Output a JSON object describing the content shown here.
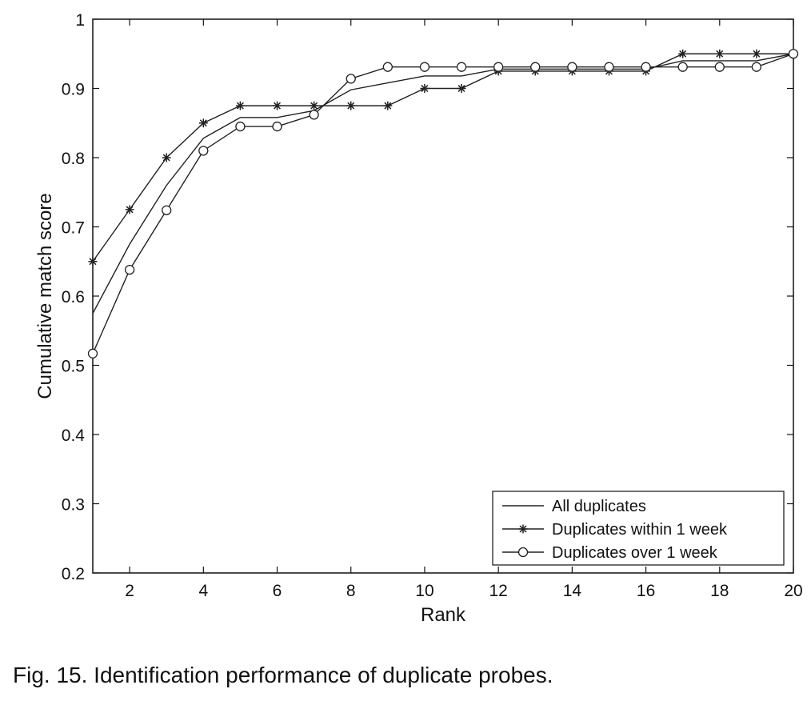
{
  "caption": "Fig. 15. Identification performance of duplicate probes.",
  "chart_data": {
    "type": "line",
    "title": "",
    "xlabel": "Rank",
    "ylabel": "Cumulative match score",
    "xlim": [
      1,
      20
    ],
    "ylim": [
      0.2,
      1
    ],
    "x_ticks": [
      2,
      4,
      6,
      8,
      10,
      12,
      14,
      16,
      18,
      20
    ],
    "y_ticks": [
      0.2,
      0.3,
      0.4,
      0.5,
      0.6,
      0.7,
      0.8,
      0.9,
      1
    ],
    "y_tick_labels": [
      "0.2",
      "0.3",
      "0.4",
      "0.5",
      "0.6",
      "0.7",
      "0.8",
      "0.9",
      "1"
    ],
    "grid": false,
    "legend_position": "bottom-right",
    "line_color": "#222222",
    "x": [
      1,
      2,
      3,
      4,
      5,
      6,
      7,
      8,
      9,
      10,
      11,
      12,
      13,
      14,
      15,
      16,
      17,
      18,
      19,
      20
    ],
    "series": [
      {
        "name": "All duplicates",
        "marker": "none",
        "values": [
          0.575,
          0.675,
          0.76,
          0.828,
          0.858,
          0.858,
          0.868,
          0.898,
          0.908,
          0.918,
          0.918,
          0.928,
          0.928,
          0.928,
          0.928,
          0.928,
          0.94,
          0.94,
          0.94,
          0.95
        ]
      },
      {
        "name": "Duplicates within 1 week",
        "marker": "star",
        "values": [
          0.65,
          0.725,
          0.8,
          0.85,
          0.875,
          0.875,
          0.875,
          0.875,
          0.875,
          0.9,
          0.9,
          0.925,
          0.925,
          0.925,
          0.925,
          0.925,
          0.95,
          0.95,
          0.95,
          0.95
        ]
      },
      {
        "name": "Duplicates over 1 week",
        "marker": "circle",
        "values": [
          0.517,
          0.638,
          0.724,
          0.81,
          0.845,
          0.845,
          0.862,
          0.914,
          0.931,
          0.931,
          0.931,
          0.931,
          0.931,
          0.931,
          0.931,
          0.931,
          0.931,
          0.931,
          0.931,
          0.95
        ]
      }
    ]
  }
}
